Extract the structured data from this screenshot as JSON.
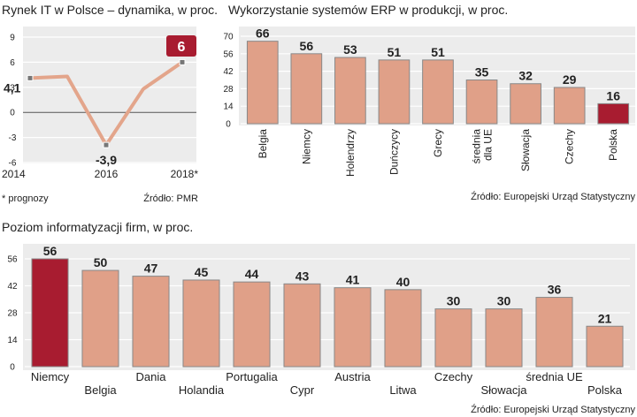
{
  "chart_data": [
    {
      "type": "line",
      "title": "Rynek IT w Polsce – dynamika, w proc.",
      "x": [
        "2014",
        "2015",
        "2016",
        "2017",
        "2018*"
      ],
      "x_tick_labels": [
        "2014",
        "2016",
        "2018*"
      ],
      "series": [
        {
          "values": [
            4.1,
            4.3,
            -3.9,
            2.8,
            6
          ]
        }
      ],
      "labels": [
        "4,1",
        "-3,9",
        "6"
      ],
      "y_ticks": [
        "9",
        "6",
        "3",
        "0",
        "-3",
        "-6"
      ],
      "ylim": [
        -6,
        9
      ],
      "grid": true,
      "footnote": "* prognozy",
      "source": "Źródło: PMR"
    },
    {
      "type": "bar",
      "title": "Wykorzystanie systemów ERP w produkcji, w proc.",
      "categories": [
        "Belgia",
        "Niemcy",
        "Holendrzy",
        "Duńczycy",
        "Grecy",
        "średnia dla UE",
        "Słowacja",
        "Czechy",
        "Polska"
      ],
      "category_lines": [
        [
          "Belgia"
        ],
        [
          "Niemcy"
        ],
        [
          "Holendrzy"
        ],
        [
          "Duńczycy"
        ],
        [
          "Grecy"
        ],
        [
          "średnia",
          "dla UE"
        ],
        [
          "Słowacja"
        ],
        [
          "Czechy"
        ],
        [
          "Polska"
        ]
      ],
      "values": [
        66,
        56,
        53,
        51,
        51,
        35,
        32,
        29,
        16
      ],
      "y_ticks": [
        "70",
        "56",
        "42",
        "28",
        "14",
        "0"
      ],
      "ylim": [
        0,
        70
      ],
      "highlight_category": "Polska",
      "source": "Źródło: Europejski Urząd Statystyczny"
    },
    {
      "type": "bar",
      "title": "Poziom informatyzacji firm, w proc.",
      "categories": [
        "Niemcy",
        "Belgia",
        "Dania",
        "Holandia",
        "Portugalia",
        "Cypr",
        "Austria",
        "Litwa",
        "Czechy",
        "Słowacja",
        "średnia UE",
        "Polska"
      ],
      "values": [
        56,
        50,
        47,
        45,
        44,
        43,
        41,
        40,
        30,
        30,
        36,
        21
      ],
      "y_ticks": [
        "56",
        "42",
        "28",
        "14",
        "0"
      ],
      "ylim": [
        0,
        56
      ],
      "highlight_category": "Niemcy",
      "source": "Źródło: Europejski Urząd Statystyczny"
    }
  ],
  "colors": {
    "bar": "#e0a088",
    "bar_highlight": "#a81c30",
    "panel": "#ececec",
    "grid": "#ffffff",
    "line": "#e3a58b",
    "label_badge": "#a81c30"
  }
}
